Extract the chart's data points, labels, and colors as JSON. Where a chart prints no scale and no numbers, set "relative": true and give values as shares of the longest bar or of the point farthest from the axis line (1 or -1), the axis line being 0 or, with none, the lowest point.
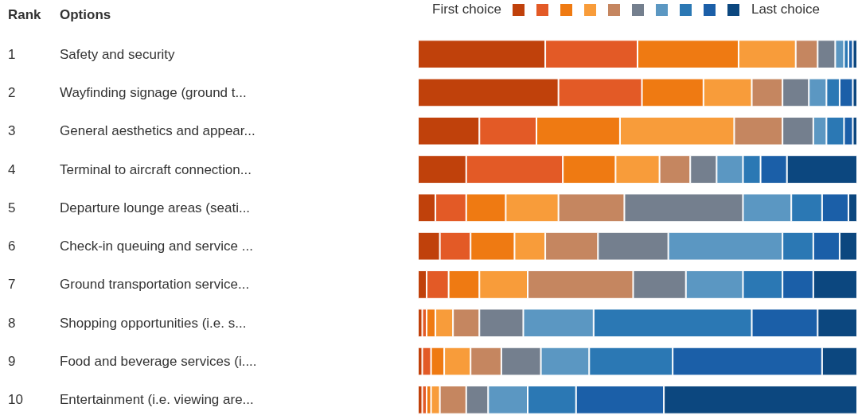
{
  "chart_data": {
    "type": "bar",
    "orientation": "horizontal",
    "stacked": true,
    "relative": true,
    "ylabel": "Options",
    "categories": [
      "Safety and security",
      "Wayfinding signage (ground t...",
      "General aesthetics and appear...",
      "Terminal to aircraft connection...",
      "Departure lounge areas (seati...",
      "Check-in queuing and service ...",
      "Ground transportation service...",
      "Shopping opportunities (i.e. s...",
      "Food and beverage services (i....",
      "Entertainment (i.e. viewing are..."
    ],
    "y2_categories": [
      "1",
      "2",
      "3",
      "4",
      "5",
      "6",
      "7",
      "8",
      "9",
      "10"
    ],
    "annotations": [
      "Rank",
      "First choice",
      "Last choice"
    ],
    "series": [
      {
        "color": "#c0410b",
        "values": [
          0.29,
          0.32,
          0.14,
          0.11,
          0.04,
          0.05,
          0.02,
          0.01,
          0.01,
          0.01
        ]
      },
      {
        "color": "#e35a26",
        "values": [
          0.21,
          0.19,
          0.13,
          0.22,
          0.07,
          0.07,
          0.05,
          0.01,
          0.02,
          0.01
        ]
      },
      {
        "color": "#ef7a12",
        "values": [
          0.23,
          0.14,
          0.19,
          0.12,
          0.09,
          0.1,
          0.07,
          0.02,
          0.03,
          0.01
        ]
      },
      {
        "color": "#f89c3a",
        "values": [
          0.13,
          0.11,
          0.26,
          0.1,
          0.12,
          0.07,
          0.11,
          0.04,
          0.06,
          0.02
        ]
      },
      {
        "color": "#c58660",
        "values": [
          0.05,
          0.07,
          0.11,
          0.07,
          0.15,
          0.12,
          0.24,
          0.06,
          0.07,
          0.06
        ]
      },
      {
        "color": "#747f8e",
        "values": [
          0.04,
          0.06,
          0.07,
          0.06,
          0.27,
          0.16,
          0.12,
          0.1,
          0.09,
          0.05
        ]
      },
      {
        "color": "#5b97c2",
        "values": [
          0.02,
          0.04,
          0.03,
          0.06,
          0.11,
          0.26,
          0.13,
          0.16,
          0.11,
          0.09
        ]
      },
      {
        "color": "#2b78b4",
        "values": [
          0.01,
          0.03,
          0.04,
          0.04,
          0.07,
          0.07,
          0.09,
          0.36,
          0.19,
          0.11
        ]
      },
      {
        "color": "#1b5fa8",
        "values": [
          0.01,
          0.03,
          0.02,
          0.06,
          0.06,
          0.06,
          0.07,
          0.15,
          0.34,
          0.2
        ]
      },
      {
        "color": "#0c477f",
        "values": [
          0.01,
          0.01,
          0.01,
          0.16,
          0.02,
          0.04,
          0.1,
          0.09,
          0.08,
          0.44
        ]
      }
    ]
  }
}
